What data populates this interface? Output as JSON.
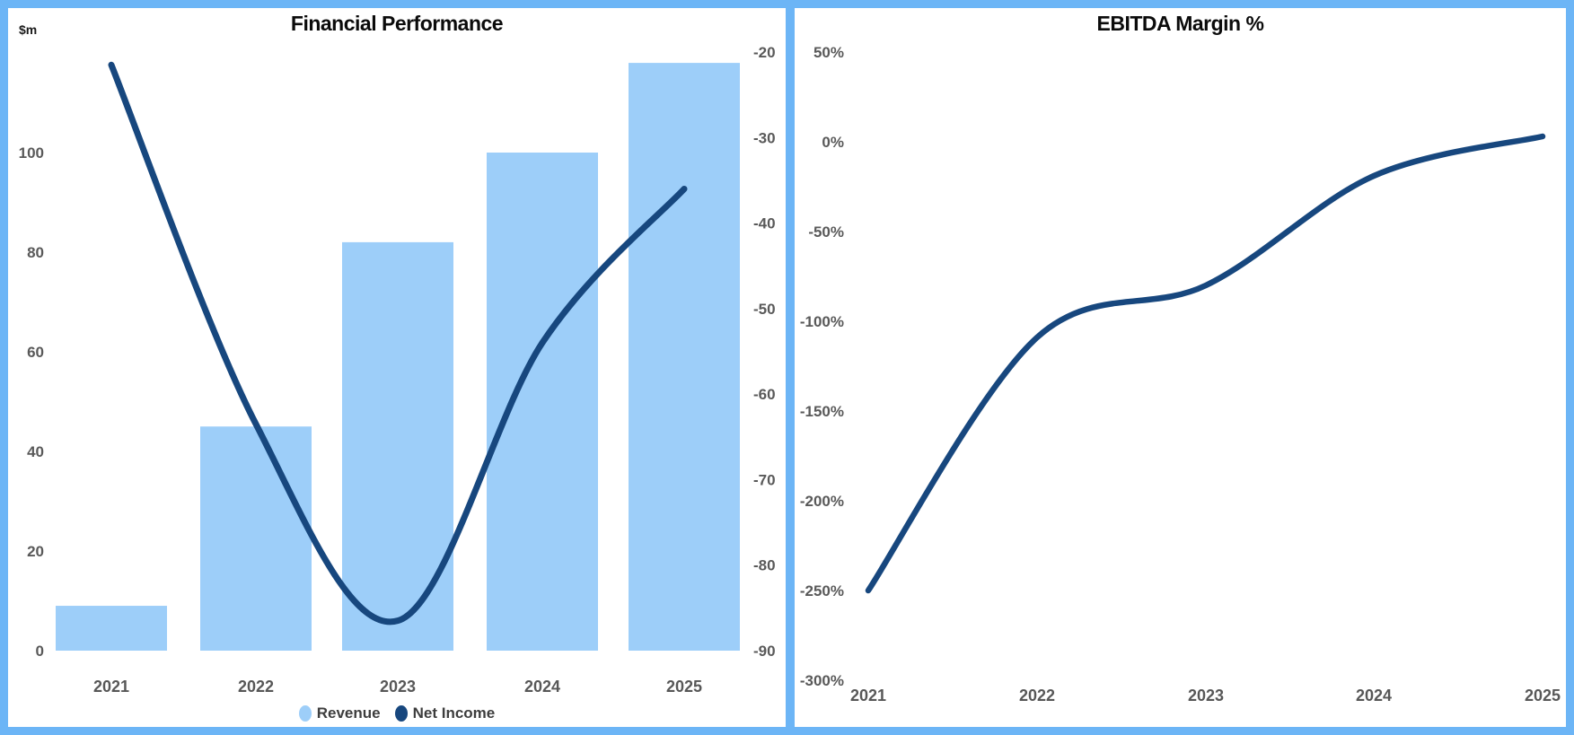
{
  "frame": {
    "border_color": "#6CB5F6",
    "panel_background": "#FFFFFF"
  },
  "chart_data": [
    {
      "type": "bar",
      "subtype": "combo-bar-line",
      "title": "Financial Performance",
      "left_axis_label": "$m",
      "categories": [
        "2021",
        "2022",
        "2023",
        "2024",
        "2025"
      ],
      "series": [
        {
          "name": "Revenue",
          "mark": "bar",
          "axis": "left",
          "color": "#9DCEF9",
          "values": [
            9,
            45,
            82,
            100,
            118
          ]
        },
        {
          "name": "Net Income",
          "mark": "line",
          "axis": "right",
          "color": "#17477E",
          "values": [
            -21.5,
            -63.5,
            -86.5,
            -54,
            -36
          ]
        }
      ],
      "left_axis": {
        "ticks": [
          0,
          20,
          40,
          60,
          80,
          100
        ],
        "range": [
          0,
          121.5
        ]
      },
      "right_axis": {
        "ticks": [
          -20,
          -30,
          -40,
          -50,
          -60,
          -70,
          -80,
          -90
        ],
        "range": [
          -90,
          -20
        ]
      },
      "legend": [
        "Revenue",
        "Net Income"
      ],
      "legend_position": "bottom",
      "grid": false
    },
    {
      "type": "line",
      "title": "EBITDA Margin %",
      "categories": [
        "2021",
        "2022",
        "2023",
        "2024",
        "2025"
      ],
      "series": [
        {
          "name": "EBITDA Margin %",
          "color": "#17477E",
          "values": [
            -250,
            -109,
            -80,
            -19,
            3
          ]
        }
      ],
      "y_ticks": [
        50,
        0,
        -50,
        -100,
        -150,
        -200,
        -250,
        -300
      ],
      "y_tick_labels": [
        "50%",
        "0%",
        "-50%",
        "-100%",
        "-150%",
        "-200%",
        "-250%",
        "-300%"
      ],
      "ylim": [
        -300,
        50
      ],
      "legend_position": "none",
      "grid": false
    }
  ]
}
